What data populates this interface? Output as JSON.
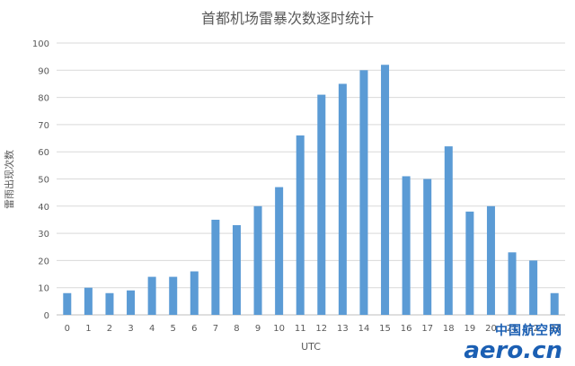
{
  "chart_data": {
    "type": "bar",
    "title": "首都机场雷暴次数逐时统计",
    "xlabel": "UTC",
    "ylabel": "雷雨出现次数",
    "ylim": [
      0,
      100
    ],
    "yticks": [
      0,
      10,
      20,
      30,
      40,
      50,
      60,
      70,
      80,
      90,
      100
    ],
    "grid": true,
    "categories": [
      "0",
      "1",
      "2",
      "3",
      "4",
      "5",
      "6",
      "7",
      "8",
      "9",
      "10",
      "11",
      "12",
      "13",
      "14",
      "15",
      "16",
      "17",
      "18",
      "19",
      "20",
      "21",
      "22",
      "23"
    ],
    "values": [
      8,
      10,
      8,
      9,
      14,
      14,
      16,
      35,
      33,
      40,
      47,
      66,
      81,
      85,
      90,
      92,
      51,
      50,
      62,
      38,
      40,
      23,
      20,
      8
    ],
    "colors": {
      "bar": "#5b9bd5",
      "grid": "#d9d9d9",
      "axis": "#bfbfbf",
      "text": "#595959"
    }
  },
  "watermark": {
    "top": "中国航空网",
    "main": "aero.cn",
    "color": "#1b5fb3"
  }
}
